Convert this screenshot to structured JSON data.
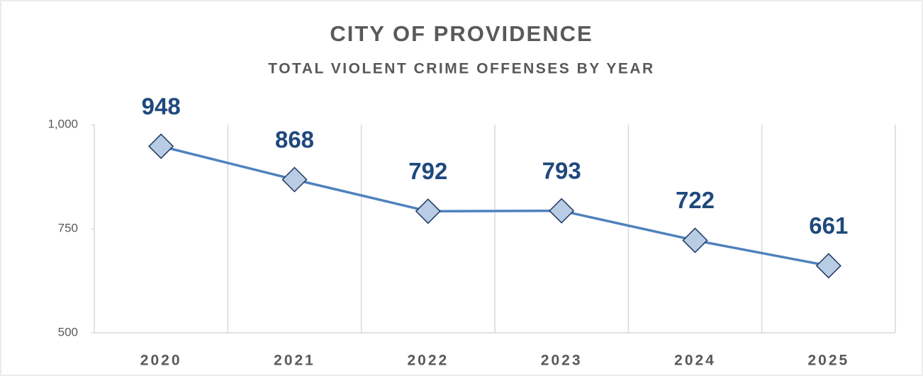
{
  "chart_data": {
    "type": "line",
    "title": "CITY OF PROVIDENCE",
    "subtitle": "TOTAL VIOLENT CRIME OFFENSES BY YEAR",
    "categories": [
      "2020",
      "2021",
      "2022",
      "2023",
      "2024",
      "2025"
    ],
    "series": [
      {
        "name": "Total Violent Crime Offenses",
        "color": "#4f81bd",
        "values": [
          948,
          868,
          792,
          793,
          722,
          661
        ]
      }
    ],
    "ylim": [
      500,
      1000
    ],
    "yticks": [
      500,
      750,
      {
        "value": 1000,
        "label": "1,000"
      }
    ],
    "grid": false
  }
}
